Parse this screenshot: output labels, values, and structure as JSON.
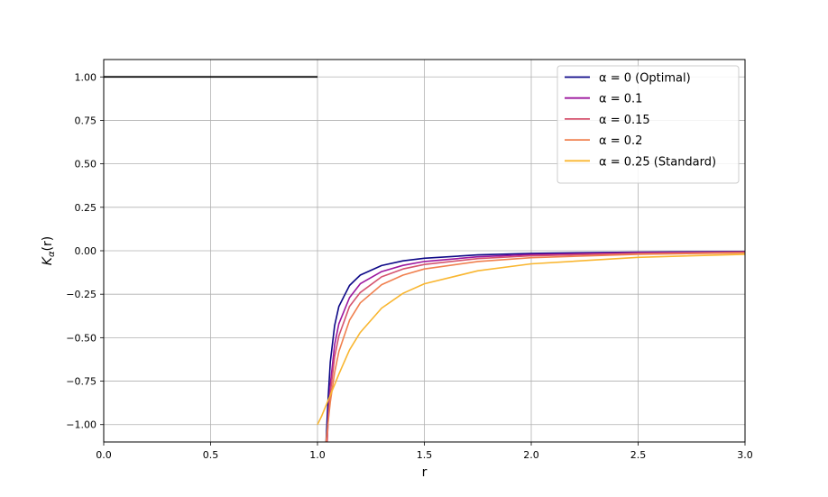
{
  "chart_data": {
    "type": "line",
    "title": "",
    "xlabel": "r",
    "ylabel": "K_α(r)",
    "ylabel_main": "K",
    "ylabel_sub": "α",
    "ylabel_tail": "(r)",
    "xlim": [
      0.0,
      3.0
    ],
    "ylim": [
      -1.1,
      1.1
    ],
    "xticks": [
      0.0,
      0.5,
      1.0,
      1.5,
      2.0,
      2.5,
      3.0
    ],
    "xtick_labels": [
      "0.0",
      "0.5",
      "1.0",
      "1.5",
      "2.0",
      "2.5",
      "3.0"
    ],
    "yticks": [
      1.0,
      0.75,
      0.5,
      0.25,
      0.0,
      -0.25,
      -0.5,
      -0.75,
      -1.0
    ],
    "ytick_labels": [
      "1.00",
      "0.75",
      "0.50",
      "0.25",
      "0.00",
      "−0.25",
      "−0.50",
      "−0.75",
      "−1.00"
    ],
    "grid": true,
    "legend_position": "top-right",
    "inner_segment": {
      "x": [
        0.0,
        1.0
      ],
      "y": [
        1.0,
        1.0
      ],
      "color": "#000000"
    },
    "series": [
      {
        "name": "α = 0 (Optimal)",
        "color": "#0d0887",
        "x": [
          1.04,
          1.05,
          1.06,
          1.08,
          1.1,
          1.15,
          1.2,
          1.3,
          1.4,
          1.5,
          1.75,
          2.0,
          2.5,
          3.0
        ],
        "y": [
          -1.1,
          -0.84,
          -0.64,
          -0.43,
          -0.32,
          -0.2,
          -0.14,
          -0.085,
          -0.058,
          -0.043,
          -0.024,
          -0.015,
          -0.008,
          -0.004
        ]
      },
      {
        "name": "α = 0.1",
        "color": "#9c179e",
        "x": [
          1.045,
          1.05,
          1.06,
          1.08,
          1.1,
          1.15,
          1.2,
          1.3,
          1.4,
          1.5,
          1.75,
          2.0,
          2.5,
          3.0
        ],
        "y": [
          -1.1,
          -0.95,
          -0.77,
          -0.54,
          -0.42,
          -0.27,
          -0.19,
          -0.12,
          -0.084,
          -0.062,
          -0.035,
          -0.022,
          -0.011,
          -0.006
        ]
      },
      {
        "name": "α = 0.15",
        "color": "#d5536f",
        "x": [
          1.045,
          1.05,
          1.06,
          1.08,
          1.1,
          1.15,
          1.2,
          1.3,
          1.4,
          1.5,
          1.75,
          2.0,
          2.5,
          3.0
        ],
        "y": [
          -1.1,
          -0.97,
          -0.82,
          -0.61,
          -0.49,
          -0.32,
          -0.24,
          -0.15,
          -0.105,
          -0.079,
          -0.045,
          -0.029,
          -0.015,
          -0.008
        ]
      },
      {
        "name": "α = 0.2",
        "color": "#f0804f",
        "x": [
          1.04,
          1.05,
          1.06,
          1.08,
          1.1,
          1.15,
          1.2,
          1.3,
          1.4,
          1.5,
          1.75,
          2.0,
          2.5,
          3.0
        ],
        "y": [
          -1.1,
          -0.98,
          -0.87,
          -0.7,
          -0.58,
          -0.4,
          -0.3,
          -0.195,
          -0.14,
          -0.105,
          -0.062,
          -0.04,
          -0.02,
          -0.012
        ]
      },
      {
        "name": "α = 0.25 (Standard)",
        "color": "#f9b630",
        "x": [
          1.0,
          1.02,
          1.05,
          1.08,
          1.1,
          1.15,
          1.2,
          1.3,
          1.4,
          1.5,
          1.75,
          2.0,
          2.5,
          3.0
        ],
        "y": [
          -1.0,
          -0.95,
          -0.86,
          -0.77,
          -0.71,
          -0.57,
          -0.47,
          -0.33,
          -0.245,
          -0.19,
          -0.115,
          -0.075,
          -0.038,
          -0.02
        ]
      }
    ]
  }
}
